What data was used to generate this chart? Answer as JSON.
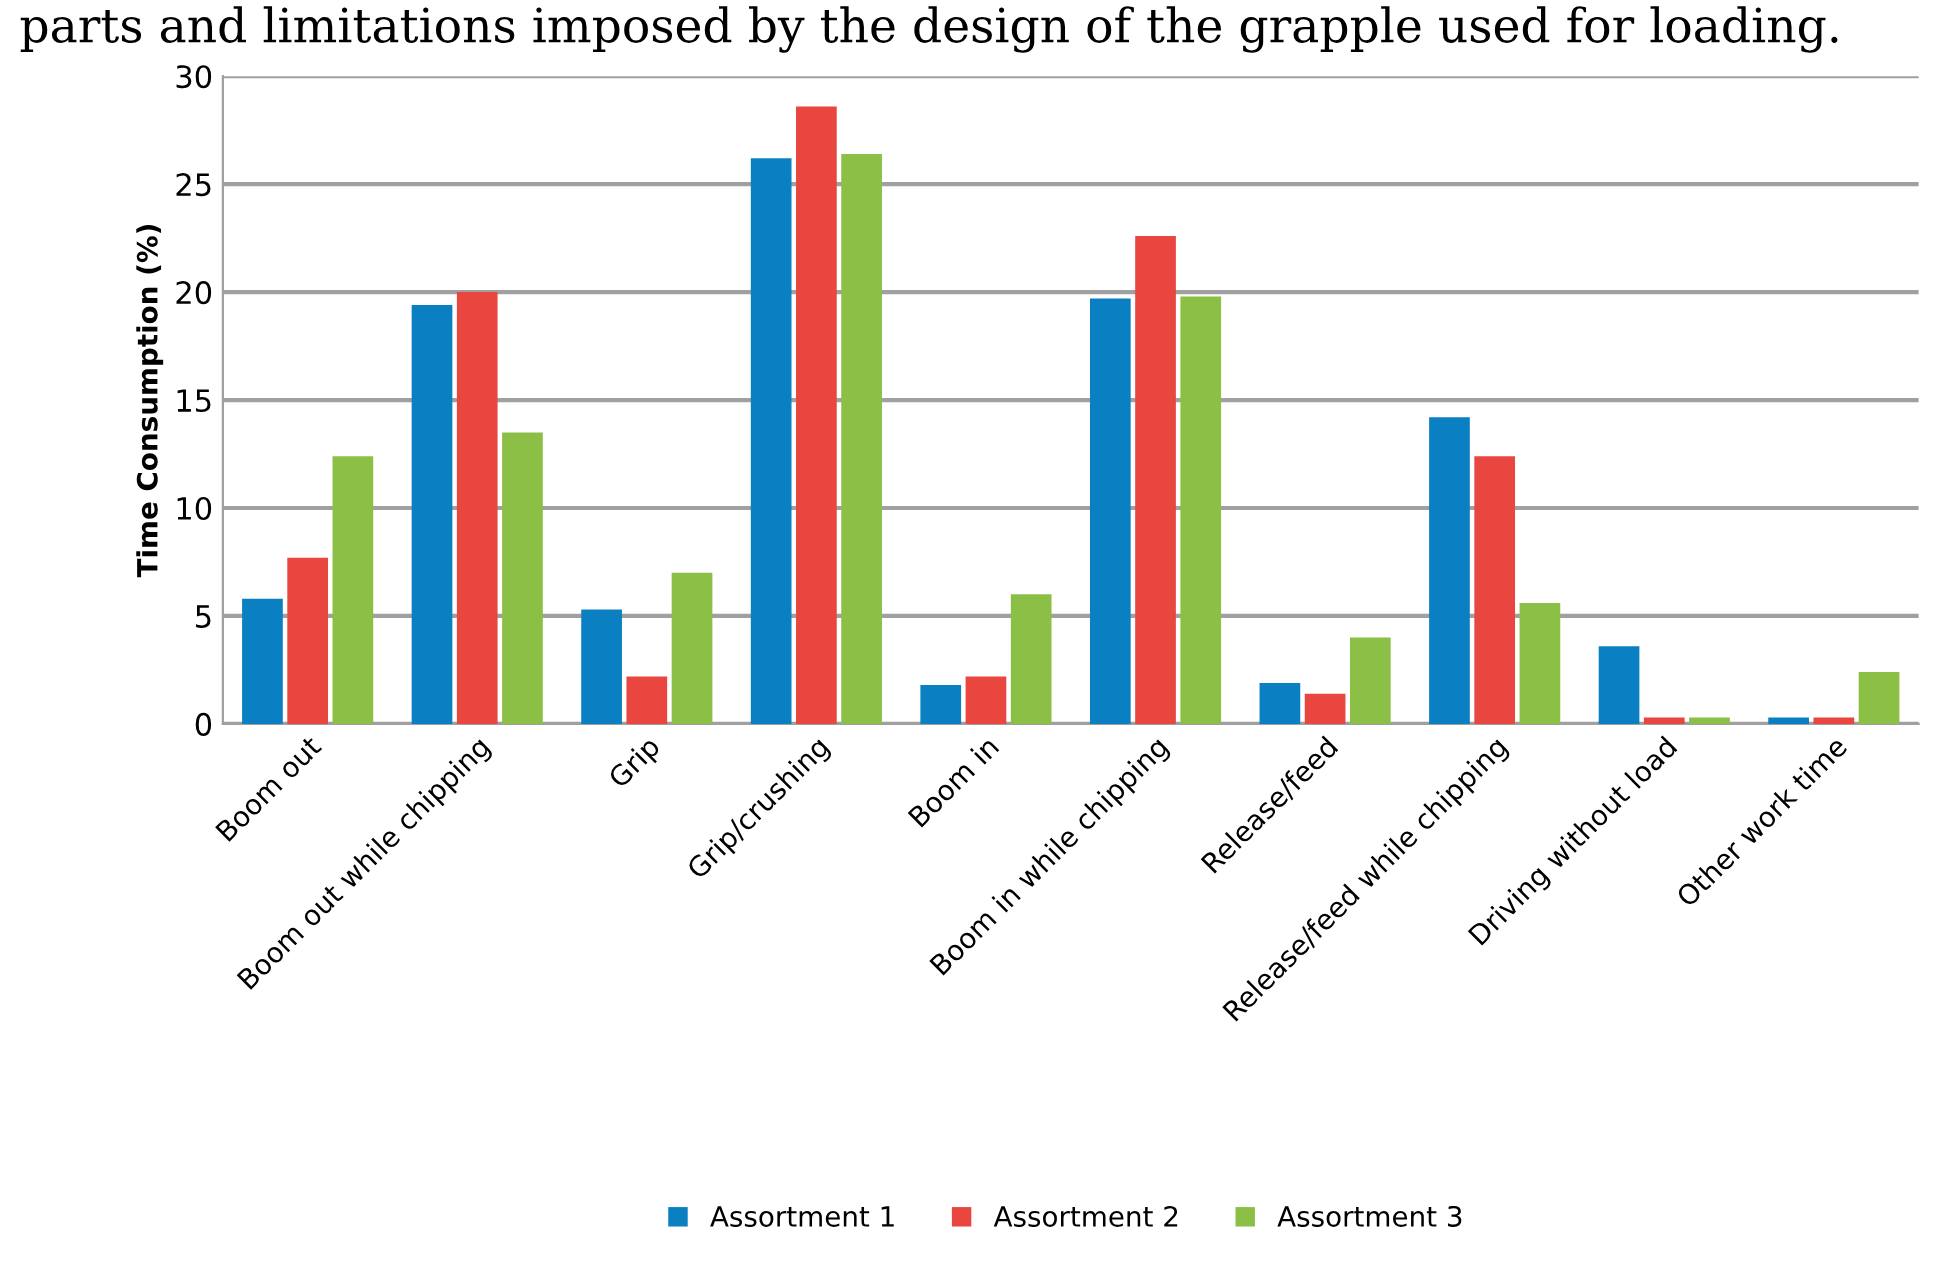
{
  "chart_data": {
    "type": "bar",
    "ylabel": "Time Consumption (%)",
    "annotations": [
      "parts and limitations imposed by the design of the grapple used for loading."
    ],
    "categories": [
      "Boom out",
      "Boom out while chipping",
      "Grip",
      "Grip/crushing",
      "Boom in",
      "Boom in while chipping",
      "Release/feed",
      "Release/feed while chipping",
      "Driving without load",
      "Other work time"
    ],
    "series": [
      {
        "name": "Assortment 1",
        "color": "#0a7fc2",
        "values": [
          5.8,
          19.4,
          5.3,
          26.2,
          1.8,
          19.7,
          1.9,
          14.2,
          3.6,
          0.3
        ]
      },
      {
        "name": "Assortment 2",
        "color": "#e8463f",
        "values": [
          7.7,
          20.0,
          2.2,
          28.6,
          2.2,
          22.6,
          1.4,
          12.4,
          0.3,
          0.3
        ]
      },
      {
        "name": "Assortment 3",
        "color": "#8cbf45",
        "values": [
          12.4,
          13.5,
          7.0,
          26.4,
          6.0,
          19.8,
          4.0,
          5.6,
          0.3,
          2.4
        ]
      }
    ],
    "ylim": [
      0,
      30
    ],
    "yticks": [
      0,
      5,
      10,
      15,
      20,
      25,
      30
    ],
    "grid": "y",
    "legend": "bottom"
  }
}
